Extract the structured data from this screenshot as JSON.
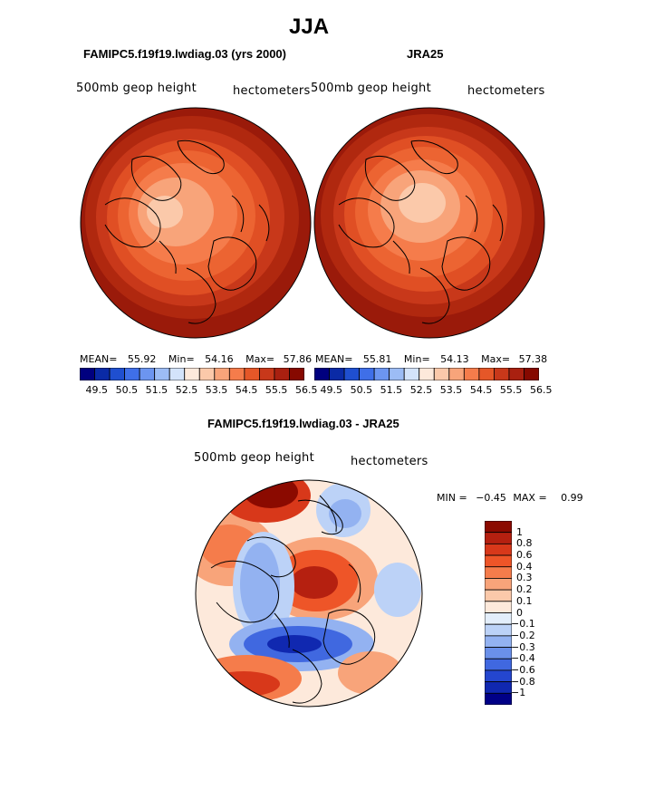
{
  "page": {
    "title": "JJA",
    "left_panel_title": "FAMIPC5.f19f19.lwdiag.03 (yrs 2000)",
    "right_panel_title": "JRA25",
    "diff_panel_title": "FAMIPC5.f19f19.lwdiag.03 - JRA25"
  },
  "left_map": {
    "variable": "500mb geop height",
    "units": "hectometers",
    "mean_label": "MEAN=",
    "mean": "55.92",
    "min_label": "Min=",
    "min": "54.16",
    "max_label": "Max=",
    "max": "57.86"
  },
  "right_map": {
    "variable": "500mb geop height",
    "units": "hectometers",
    "mean_label": "MEAN=",
    "mean": "55.81",
    "min_label": "Min=",
    "min": "54.13",
    "max_label": "Max=",
    "max": "57.38"
  },
  "diff_map": {
    "variable": "500mb geop height",
    "units": "hectometers",
    "min_label": "MIN =",
    "min": "−0.45",
    "max_label": "MAX =",
    "max": "0.99"
  },
  "colorbar_horizontal": {
    "colors": [
      "#00007f",
      "#0a2aa6",
      "#1f4fd0",
      "#3f6fe8",
      "#6c95f0",
      "#9cbcf5",
      "#d3e3fa",
      "#fde9db",
      "#fbc9aa",
      "#f8a47a",
      "#f57c4b",
      "#e55728",
      "#c8381a",
      "#a92010",
      "#860900"
    ],
    "tick_labels": [
      "49.5",
      "50.5",
      "51.5",
      "52.5",
      "53.5",
      "54.5",
      "55.5",
      "56.5"
    ]
  },
  "colorbar_vertical": {
    "colors": [
      "#8b0a00",
      "#b52010",
      "#d8381a",
      "#ee5528",
      "#f57c4b",
      "#f8a47a",
      "#fbc9aa",
      "#fde9db",
      "#e3eefb",
      "#bcd2f7",
      "#93b2f1",
      "#6a90ea",
      "#4068e0",
      "#2446cf",
      "#1028b0",
      "#000087"
    ],
    "tick_labels": [
      "1",
      "0.8",
      "0.6",
      "0.4",
      "0.3",
      "0.2",
      "0.1",
      "0",
      "−0.1",
      "−0.2",
      "−0.3",
      "−0.4",
      "−0.6",
      "−0.8",
      "−1"
    ]
  }
}
